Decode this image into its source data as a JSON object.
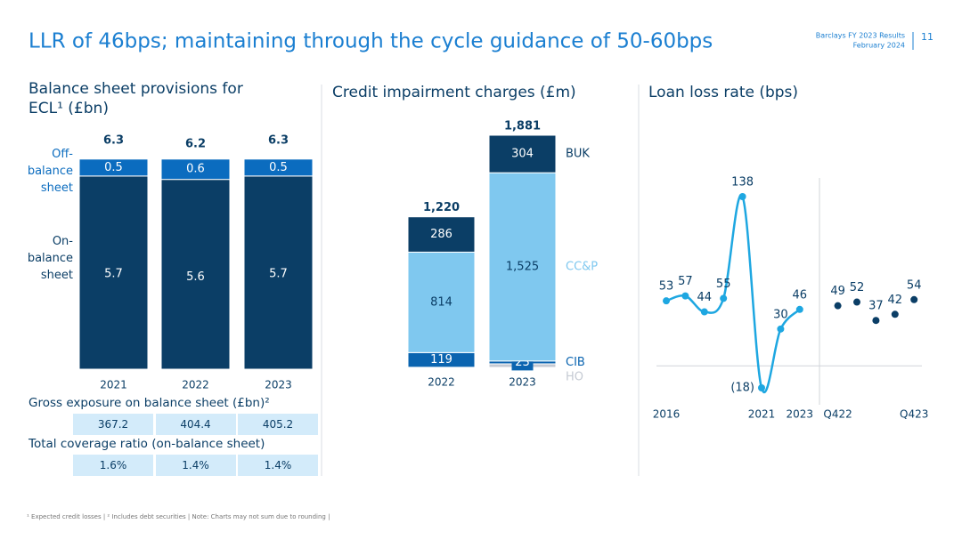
{
  "header": {
    "title": "LLR of 46bps; maintaining through the cycle guidance of 50-60bps",
    "source": "Barclays FY 2023 Results",
    "date": "February 2024",
    "page": "11"
  },
  "chart_data": [
    {
      "type": "stacked_bar",
      "title": "Balance sheet provisions for ECL¹ (£bn)",
      "categories": [
        "2021",
        "2022",
        "2023"
      ],
      "series": [
        {
          "name": "Off-balance sheet",
          "color": "#0b6cbf",
          "values": [
            0.5,
            0.6,
            0.5
          ]
        },
        {
          "name": "On-balance sheet",
          "color": "#0b3e66",
          "values": [
            5.7,
            5.6,
            5.7
          ]
        }
      ],
      "totals": [
        6.3,
        6.2,
        6.3
      ]
    },
    {
      "type": "stacked_bar",
      "title": "Credit impairment charges (£m)",
      "categories": [
        "2022",
        "2023"
      ],
      "series": [
        {
          "name": "BUK",
          "color": "#0b3e66",
          "values": [
            286,
            304
          ]
        },
        {
          "name": "CC&P",
          "color": "#7fc8ef",
          "values": [
            814,
            1525
          ],
          "value_labels": [
            "814",
            "1,525"
          ]
        },
        {
          "name": "CIB",
          "color": "#0a64b0",
          "values": [
            119,
            23
          ]
        },
        {
          "name": "HO",
          "color": "#c5cad3",
          "values": [
            1,
            29
          ],
          "value_labels": [
            null,
            null
          ]
        }
      ],
      "totals": [
        1220,
        1881
      ],
      "total_labels": [
        "1,220",
        "1,881"
      ]
    },
    {
      "type": "line",
      "title": "Loan loss rate (bps)",
      "categories": [
        "2016",
        null,
        null,
        null,
        null,
        "2021",
        null,
        "2023",
        "Q422",
        null,
        null,
        null,
        "Q423"
      ],
      "series": [
        {
          "color": "#1ea7e1",
          "line": true,
          "values": [
            53,
            57,
            44,
            55,
            138,
            -18,
            30,
            46,
            null,
            null,
            null,
            null,
            null
          ],
          "value_labels": [
            "53",
            "57",
            "44",
            "55",
            "138",
            "(18)",
            "30",
            "46",
            null,
            null,
            null,
            null,
            null
          ]
        },
        {
          "color": "#0b3e66",
          "line": false,
          "values": [
            null,
            null,
            null,
            null,
            null,
            null,
            null,
            null,
            49,
            52,
            37,
            42,
            54
          ]
        }
      ]
    }
  ],
  "tables": [
    {
      "title": "Gross exposure on balance sheet (£bn)²",
      "cells": [
        367.2,
        404.4,
        405.2
      ]
    },
    {
      "title": "Total coverage ratio (on-balance sheet)",
      "cells": [
        "1.6%",
        "1.4%",
        "1.4%"
      ]
    }
  ],
  "footnote": "¹ Expected credit losses | ² Includes debt securities | Note: Charts may not sum due to rounding |"
}
